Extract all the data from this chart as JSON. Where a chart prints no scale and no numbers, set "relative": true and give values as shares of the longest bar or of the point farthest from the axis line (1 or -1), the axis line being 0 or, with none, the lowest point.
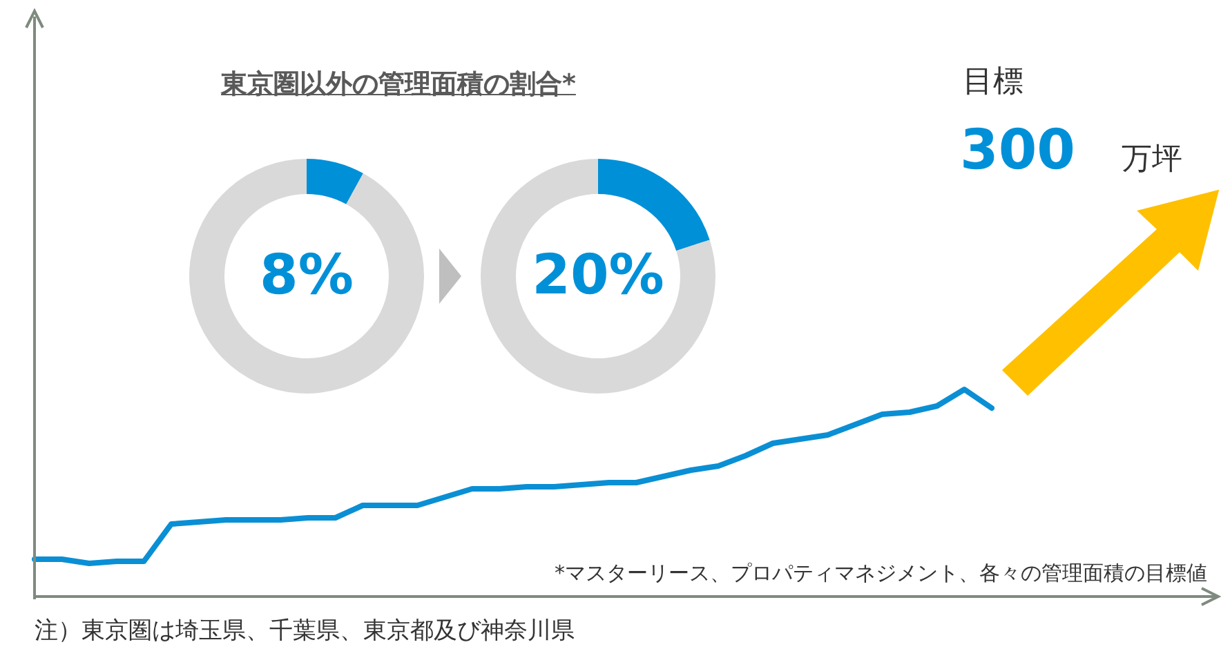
{
  "chart_data": [
    {
      "type": "line",
      "relative": true,
      "marker": "none",
      "line_style": "solid",
      "categories": [
        null,
        null,
        null,
        null,
        null,
        null,
        null,
        null,
        null,
        null,
        null,
        null,
        null,
        null,
        null,
        null,
        null,
        null,
        null,
        null,
        null,
        null,
        null,
        null,
        null,
        null,
        null,
        null,
        null,
        null,
        null,
        null,
        null,
        null,
        null,
        null
      ],
      "series": [
        {
          "color": "#0a8fd4",
          "values": [
            0.18,
            0.18,
            0.16,
            0.17,
            0.17,
            0.35,
            0.36,
            0.37,
            0.37,
            0.37,
            0.38,
            0.38,
            0.44,
            0.44,
            0.44,
            0.48,
            0.52,
            0.52,
            0.53,
            0.53,
            0.54,
            0.55,
            0.55,
            0.58,
            0.61,
            0.63,
            0.68,
            0.74,
            0.76,
            0.78,
            0.83,
            0.88,
            0.89,
            0.92,
            1.0,
            0.91
          ]
        }
      ],
      "annotations": [
        "目標",
        "300",
        "万坪",
        "*マスターリース、プロパティマネジメント、各々の管理面積の目標値",
        "注）東京圏は埼玉県、千葉県、東京都及び神奈川県"
      ]
    },
    {
      "type": "donut",
      "title": "東京圏以外の管理面積の割合*",
      "categories": [
        null,
        null
      ],
      "values": [
        8,
        92
      ],
      "colors": [
        "#0090d8",
        "#d9d9d9"
      ],
      "value_labels": [
        "8%",
        null
      ]
    },
    {
      "type": "donut",
      "categories": [
        null,
        null
      ],
      "values": [
        20,
        80
      ],
      "colors": [
        "#0090d8",
        "#d9d9d9"
      ],
      "value_labels": [
        "20%",
        null
      ]
    }
  ]
}
